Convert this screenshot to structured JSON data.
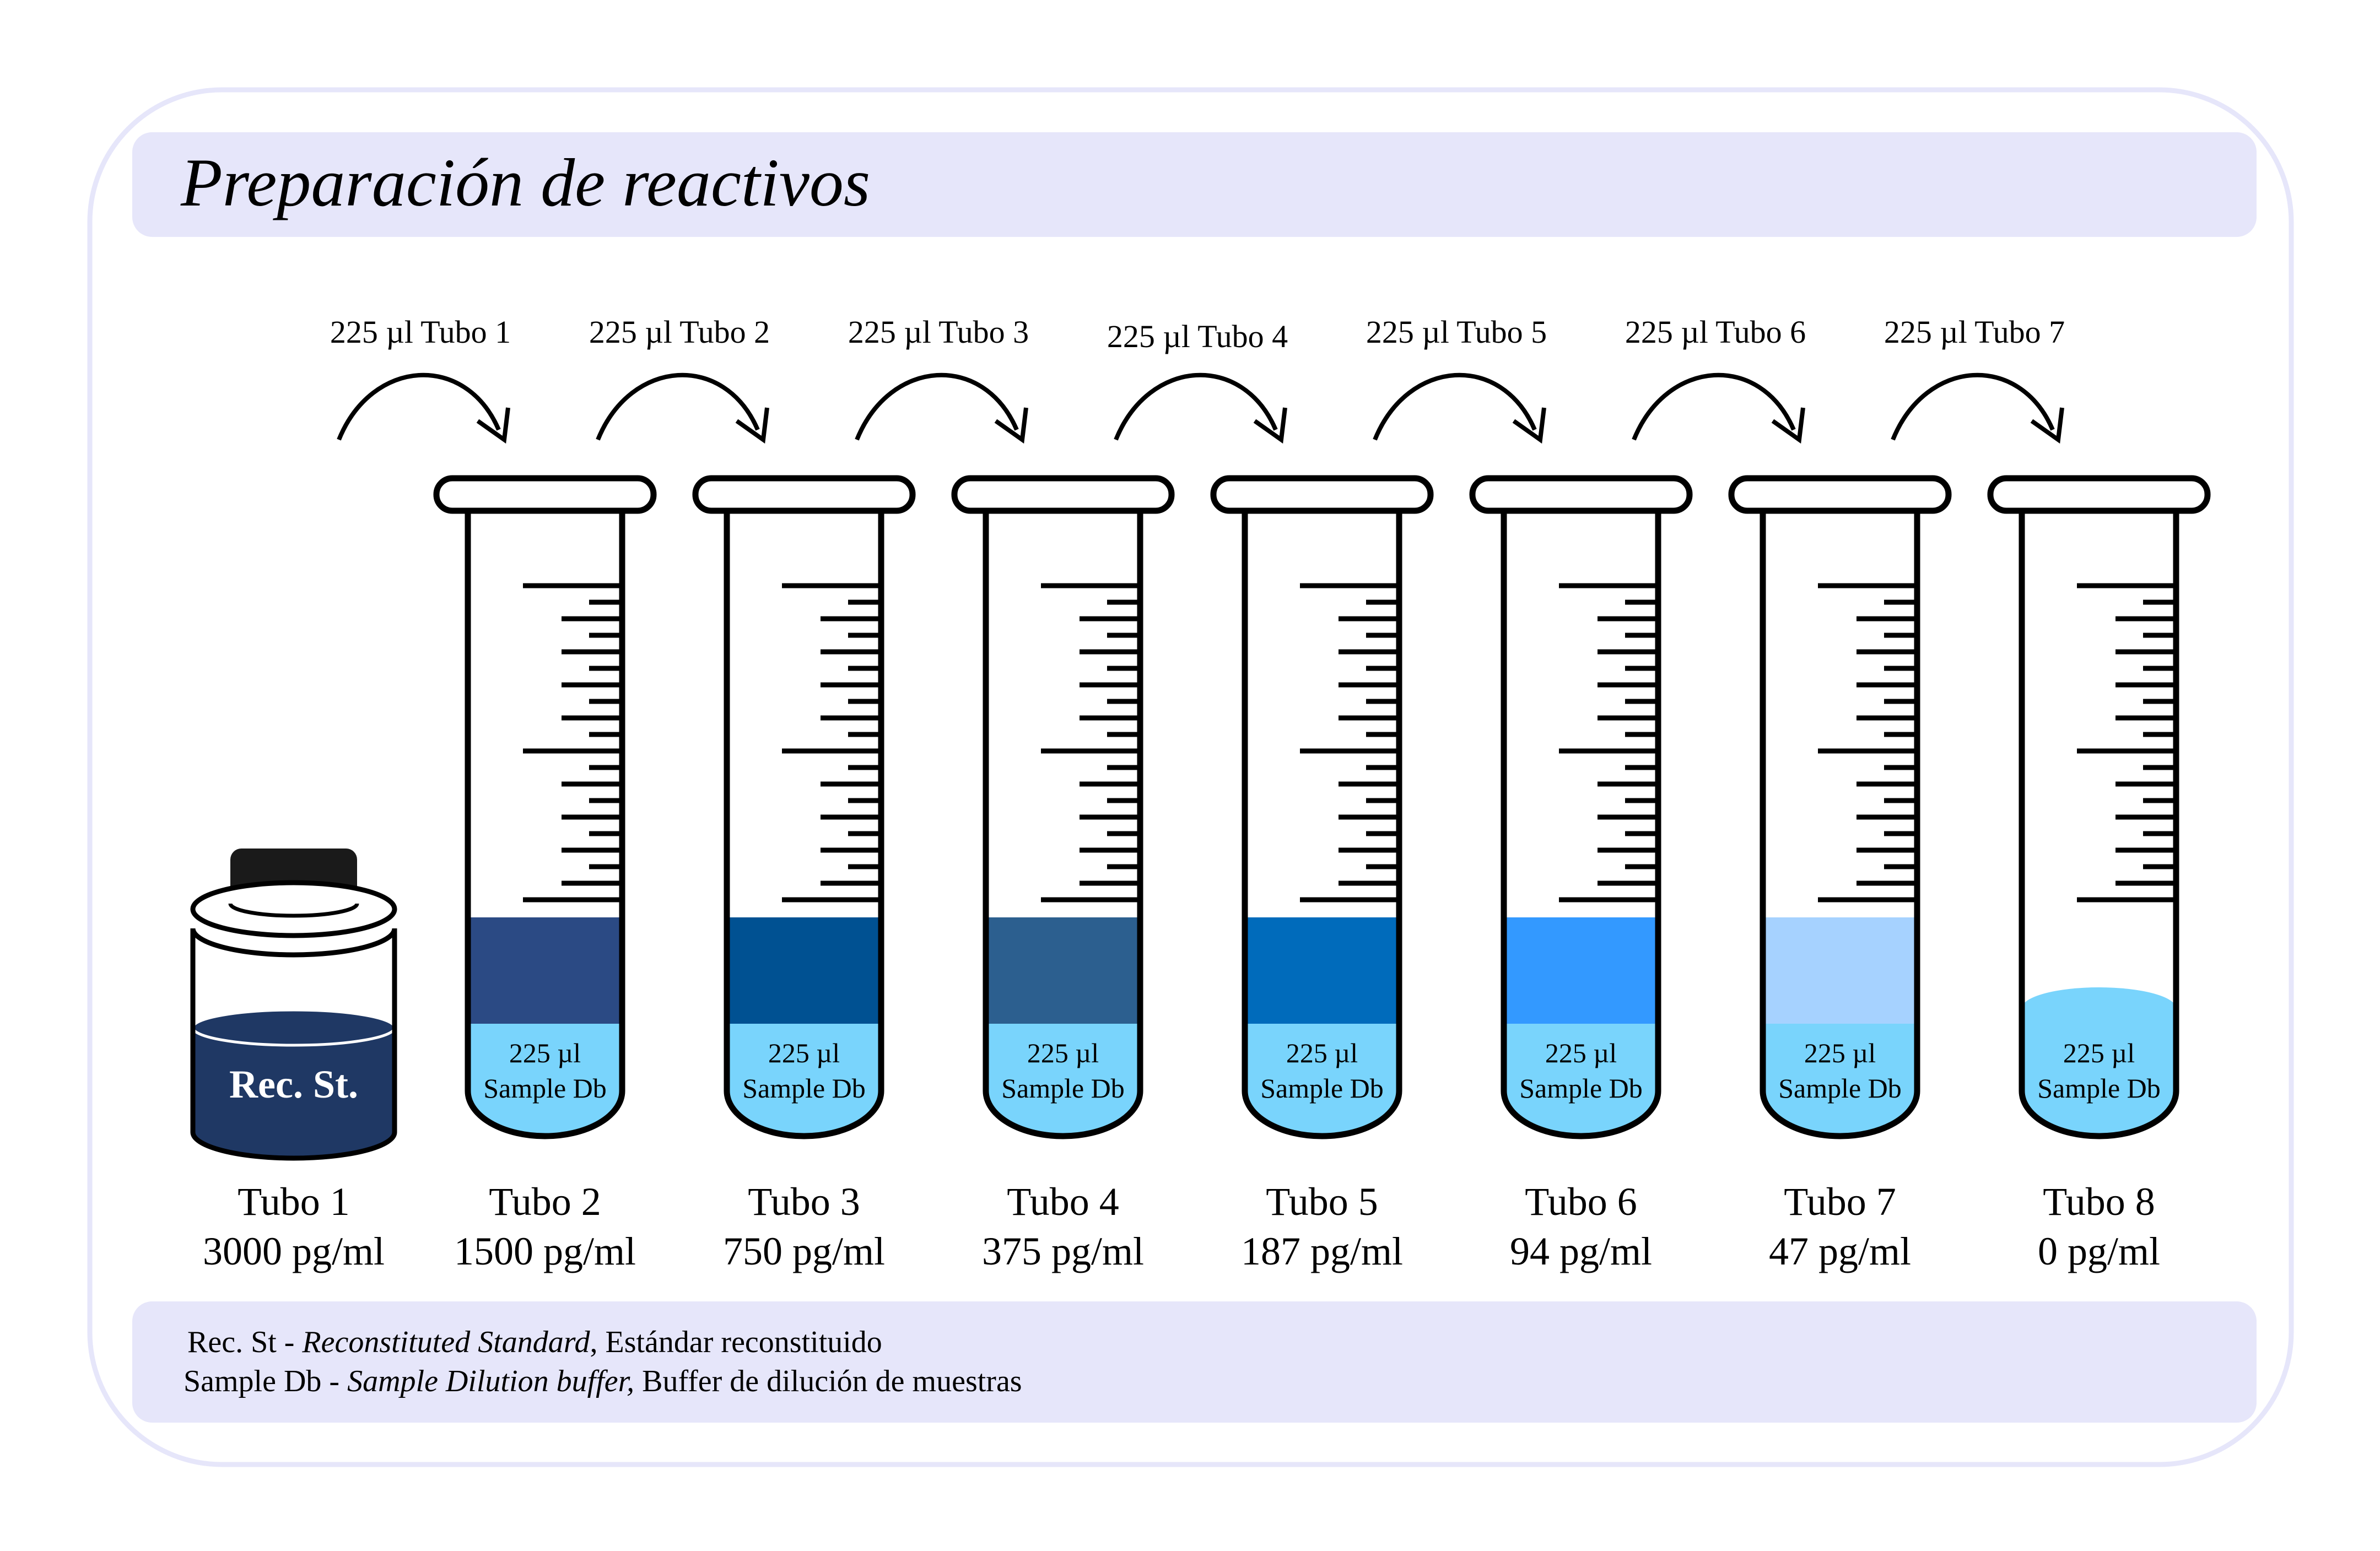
{
  "title": "Preparación de reactivos",
  "jar": {
    "label": "Rec. St.",
    "name": "Tubo 1",
    "concentration": "3000 pg/ml",
    "liquid_color": "#1f3864"
  },
  "buffer_label": {
    "line1": "225 µl",
    "line2": "Sample Db",
    "color": "#79d4fc"
  },
  "tubes": [
    {
      "name": "Tubo 2",
      "concentration": "1500 pg/ml",
      "top_color": "#2b4a84",
      "transfer_label": "225 µl Tubo 1"
    },
    {
      "name": "Tubo 3",
      "concentration": "750 pg/ml",
      "top_color": "#005192",
      "transfer_label": "225 µl Tubo 2"
    },
    {
      "name": "Tubo 4",
      "concentration": "375 pg/ml",
      "top_color": "#2c5f8f",
      "transfer_label": "225 µl Tubo 3"
    },
    {
      "name": "Tubo 5",
      "concentration": "187 pg/ml",
      "top_color": "#006bbb",
      "transfer_label": "225 µl Tubo 4"
    },
    {
      "name": "Tubo 6",
      "concentration": "94 pg/ml",
      "top_color": "#3399ff",
      "transfer_label": "225 µl Tubo 5"
    },
    {
      "name": "Tubo 7",
      "concentration": "47 pg/ml",
      "top_color": "#a6d2ff",
      "transfer_label": "225 µl Tubo 6"
    },
    {
      "name": "Tubo 8",
      "concentration": "0 pg/ml",
      "top_color": "",
      "transfer_label": "225 µl Tubo 7"
    }
  ],
  "legend": [
    {
      "abbr": "Rec. St - ",
      "english": "Reconstituted Standard",
      "spanish": ", Estándar reconstituido"
    },
    {
      "abbr": "Sample Db - ",
      "english": "Sample Dilution buffer,",
      "spanish": " Buffer de dilución de muestras"
    }
  ],
  "colors": {
    "panel_fill": "#e6e6fa",
    "frame_stroke": "#e6e6fa",
    "outline": "#000000"
  }
}
